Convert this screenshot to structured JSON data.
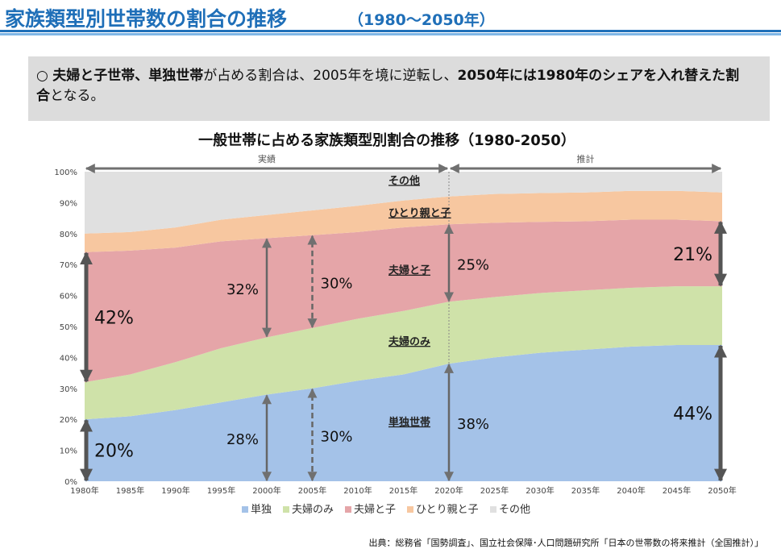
{
  "header": {
    "title": "家族類型別世帯数の割合の推移",
    "title_sub": "（1980～2050年）",
    "accent_color": "#1f6fb8",
    "accent_light": "#7fb6e6"
  },
  "summary": {
    "bullet": "○ ",
    "parts": [
      {
        "text": "夫婦と子世帯、単独世帯",
        "bold": true
      },
      {
        "text": "が占める割合は、2005年を境に逆転し、",
        "bold": false
      },
      {
        "text": "2050年には1980年のシェアを入れ替えた割合",
        "bold": true
      },
      {
        "text": "となる。",
        "bold": false
      }
    ]
  },
  "chart_data": {
    "type": "area",
    "stacked": true,
    "title": "一般世帯に占める家族類型別割合の推移（1980-2050）",
    "x": [
      1980,
      1985,
      1990,
      1995,
      2000,
      2005,
      2010,
      2015,
      2020,
      2025,
      2030,
      2035,
      2040,
      2045,
      2050
    ],
    "x_tick_labels": [
      "1980年",
      "1985年",
      "1990年",
      "1995年",
      "2000年",
      "2005年",
      "2010年",
      "2015年",
      "2020年",
      "2025年",
      "2030年",
      "2035年",
      "2040年",
      "2045年",
      "2050年"
    ],
    "ylim": [
      0,
      100
    ],
    "y_tick_labels": [
      "0%",
      "10%",
      "20%",
      "30%",
      "40%",
      "50%",
      "60%",
      "70%",
      "80%",
      "90%",
      "100%"
    ],
    "series": [
      {
        "name": "単独",
        "color": "#a4c2e8",
        "values": [
          20,
          21,
          23,
          25.5,
          28,
          30,
          32.5,
          34.5,
          38,
          40,
          41.5,
          42.5,
          43.5,
          44,
          44
        ]
      },
      {
        "name": "夫婦のみ",
        "color": "#cfe2a9",
        "values": [
          12,
          13.5,
          15.5,
          17.5,
          18.5,
          19.5,
          20,
          20.5,
          20,
          19.5,
          19.3,
          19.2,
          19,
          19,
          19
        ]
      },
      {
        "name": "夫婦と子",
        "color": "#e5a5a8",
        "values": [
          42,
          40,
          37,
          34.5,
          32,
          30,
          28,
          27,
          25,
          24,
          23,
          22.3,
          22,
          21.5,
          21
        ]
      },
      {
        "name": "ひとり親と子",
        "color": "#f7c7a0",
        "values": [
          6,
          6,
          6.5,
          7,
          7.5,
          8,
          8.5,
          8.7,
          9,
          9.3,
          9.3,
          9.3,
          9.3,
          9.3,
          9.3
        ]
      },
      {
        "name": "その他",
        "color": "#e0e0e0",
        "values": [
          20,
          19.5,
          18,
          15.5,
          14,
          12.5,
          11,
          9.3,
          8,
          7.2,
          6.9,
          6.7,
          6.2,
          6.2,
          6.7
        ]
      }
    ],
    "periods": [
      {
        "label": "実績",
        "from": 1980,
        "to": 2020
      },
      {
        "label": "推計",
        "from": 2020,
        "to": 2050
      }
    ],
    "inline_series_labels": [
      {
        "text": "その他",
        "x": 2010,
        "y": 96
      },
      {
        "text": "ひとり親と子",
        "x": 2010,
        "y": 85.5
      },
      {
        "text": "夫婦と子",
        "x": 2010,
        "y": 67
      },
      {
        "text": "夫婦のみ",
        "x": 2010,
        "y": 44
      },
      {
        "text": "単独世帯",
        "x": 2010,
        "y": 18
      }
    ],
    "range_annotations": [
      {
        "x": 1980,
        "from": 0,
        "to": 20,
        "label": "20%",
        "dashed": false,
        "side": "right"
      },
      {
        "x": 1980,
        "from": 32,
        "to": 74,
        "label": "42%",
        "dashed": false,
        "side": "right"
      },
      {
        "x": 2000,
        "from": 0,
        "to": 28,
        "label": "28%",
        "dashed": false,
        "side": "left"
      },
      {
        "x": 2000,
        "from": 46.5,
        "to": 78.5,
        "label": "32%",
        "dashed": false,
        "side": "left"
      },
      {
        "x": 2005,
        "from": 0,
        "to": 30,
        "label": "30%",
        "dashed": true,
        "side": "right"
      },
      {
        "x": 2005,
        "from": 49.5,
        "to": 79.5,
        "label": "30%",
        "dashed": true,
        "side": "right"
      },
      {
        "x": 2020,
        "from": 0,
        "to": 38,
        "label": "38%",
        "dashed": false,
        "side": "right"
      },
      {
        "x": 2020,
        "from": 58,
        "to": 83,
        "label": "25%",
        "dashed": false,
        "side": "right"
      },
      {
        "x": 2050,
        "from": 0,
        "to": 44,
        "label": "44%",
        "dashed": false,
        "side": "left"
      },
      {
        "x": 2050,
        "from": 63,
        "to": 84,
        "label": "21%",
        "dashed": false,
        "side": "left"
      }
    ],
    "legend_position": "bottom",
    "grid": false
  },
  "source": "出典：総務省「国勢調査」、国立社会保障･人口問題研究所「日本の世帯数の将来推計（全国推計）」"
}
